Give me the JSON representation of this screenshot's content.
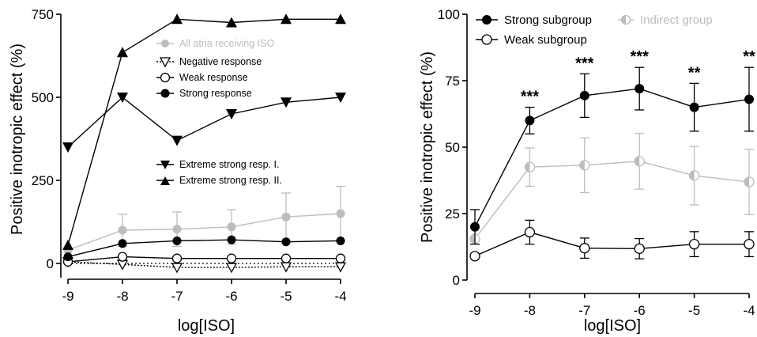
{
  "colors": {
    "black": "#000000",
    "gray": "#bdbdbd",
    "white": "#ffffff"
  },
  "chart_data": [
    {
      "type": "line",
      "x": [
        -9,
        -8,
        -7,
        -6,
        -5,
        -4
      ],
      "xticks": [
        "-9",
        "-8",
        "-7",
        "-6",
        "-5",
        "-4"
      ],
      "yticks": [
        "0",
        "250",
        "500",
        "750"
      ],
      "xlim": [
        -9,
        -4
      ],
      "ylim": [
        0,
        750
      ],
      "xlabel": "log[ISO]",
      "ylabel": "Positive inotropic effect (%)",
      "legend_group_a": [
        {
          "label": "All atria receiving ISO",
          "marker": "circle-gray"
        },
        {
          "label": "Negative response",
          "marker": "triangle-down-open"
        },
        {
          "label": "Weak response",
          "marker": "circle-open"
        },
        {
          "label": "Strong response",
          "marker": "circle-filled"
        }
      ],
      "legend_group_b": [
        {
          "label": "Extreme strong resp. I.",
          "marker": "triangle-down-filled"
        },
        {
          "label": "Extreme strong resp. II.",
          "marker": "triangle-up-filled"
        }
      ],
      "series": [
        {
          "name": "All atria receiving ISO",
          "color": "#bdbdbd",
          "marker": "circle-filled",
          "dash": false,
          "values": [
            40,
            100,
            103,
            110,
            140,
            150
          ],
          "err": [
            0,
            48,
            52,
            52,
            72,
            82
          ]
        },
        {
          "name": "Negative response",
          "color": "#000000",
          "marker": "triangle-down-open",
          "dash": true,
          "values": [
            5,
            -3,
            -12,
            -12,
            -10,
            -10
          ],
          "err": [
            0,
            0,
            0,
            0,
            0,
            0
          ]
        },
        {
          "name": "Weak response",
          "color": "#000000",
          "marker": "circle-open",
          "dash": false,
          "values": [
            5,
            20,
            15,
            15,
            15,
            15
          ],
          "err": [
            0,
            0,
            0,
            0,
            0,
            0
          ]
        },
        {
          "name": "Strong response",
          "color": "#000000",
          "marker": "circle-filled",
          "dash": false,
          "values": [
            20,
            60,
            68,
            71,
            65,
            68
          ],
          "err": [
            0,
            0,
            0,
            0,
            0,
            0
          ]
        },
        {
          "name": "Extreme strong resp. I.",
          "color": "#000000",
          "marker": "triangle-down-filled",
          "dash": false,
          "values": [
            350,
            500,
            370,
            450,
            485,
            500
          ],
          "err": [
            0,
            0,
            0,
            0,
            0,
            0
          ]
        },
        {
          "name": "Extreme strong resp. II.",
          "color": "#000000",
          "marker": "triangle-up-filled",
          "dash": false,
          "values": [
            55,
            635,
            735,
            725,
            735,
            735
          ],
          "err": [
            0,
            0,
            0,
            0,
            0,
            0
          ]
        }
      ]
    },
    {
      "type": "line",
      "x": [
        -9,
        -8,
        -7,
        -6,
        -5,
        -4
      ],
      "xticks": [
        "-9",
        "-8",
        "-7",
        "-6",
        "-5",
        "-4"
      ],
      "yticks": [
        "0",
        "25",
        "50",
        "75",
        "100"
      ],
      "xlim": [
        -9,
        -4
      ],
      "ylim": [
        0,
        100
      ],
      "xlabel": "log[ISO]",
      "ylabel": "Positive inotropic effect (%)",
      "legend": [
        {
          "label": "Strong subgroup",
          "marker": "circle-filled"
        },
        {
          "label": "Weak subgroup",
          "marker": "circle-open"
        },
        {
          "label": "Indirect group",
          "marker": "half-circle-gray"
        }
      ],
      "annotations": [
        {
          "x": -8,
          "text": "***"
        },
        {
          "x": -7,
          "text": "***"
        },
        {
          "x": -6,
          "text": "***"
        },
        {
          "x": -5,
          "text": "**"
        },
        {
          "x": -4,
          "text": "**"
        }
      ],
      "series": [
        {
          "name": "Indirect group",
          "color": "#bdbdbd",
          "marker": "half-circle",
          "dash": false,
          "values": [
            15.5,
            42.5,
            43.2,
            44.7,
            39.3,
            36.9
          ],
          "err": [
            0,
            7.2,
            10.3,
            10.5,
            11,
            12.3
          ]
        },
        {
          "name": "Weak subgroup",
          "color": "#000000",
          "marker": "circle-open",
          "dash": false,
          "values": [
            9,
            18,
            12,
            11.8,
            13.5,
            13.5
          ],
          "err": [
            0,
            4.5,
            3.8,
            3.8,
            4.7,
            4.7
          ]
        },
        {
          "name": "Strong subgroup",
          "color": "#000000",
          "marker": "circle-filled",
          "dash": false,
          "values": [
            20,
            60,
            69.4,
            72,
            65,
            68
          ],
          "err": [
            6.5,
            5,
            8.2,
            8,
            9,
            12
          ]
        }
      ]
    }
  ]
}
